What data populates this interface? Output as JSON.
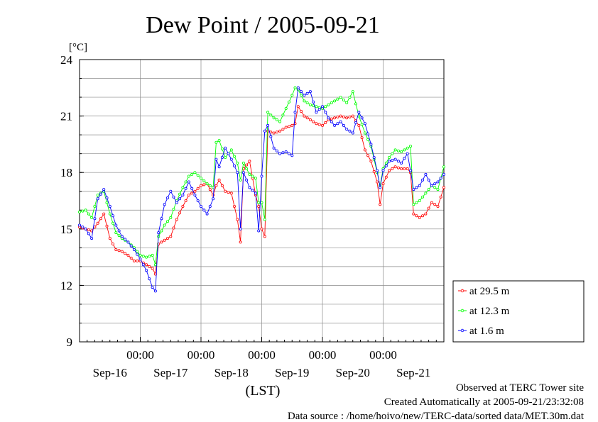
{
  "chart_data": {
    "type": "line",
    "title": "Dew Point / 2005-09-21",
    "ylabel": "[°C]",
    "xlabel": "(LST)",
    "ylim": [
      9,
      24
    ],
    "yticks": [
      9,
      12,
      15,
      18,
      21,
      24
    ],
    "xlim": [
      0,
      6
    ],
    "x_unit": "days since 2005-09-16 00:00 LST",
    "xticks": [
      {
        "x": 1,
        "label": "00:00"
      },
      {
        "x": 2,
        "label": "00:00"
      },
      {
        "x": 3,
        "label": "00:00"
      },
      {
        "x": 4,
        "label": "00:00"
      },
      {
        "x": 5,
        "label": "00:00"
      }
    ],
    "day_labels": [
      {
        "x": 0.5,
        "label": "Sep-16"
      },
      {
        "x": 1.5,
        "label": "Sep-17"
      },
      {
        "x": 2.5,
        "label": "Sep-18"
      },
      {
        "x": 3.5,
        "label": "Sep-19"
      },
      {
        "x": 4.5,
        "label": "Sep-20"
      },
      {
        "x": 5.5,
        "label": "Sep-21"
      }
    ],
    "grid": true,
    "legend_position": "right",
    "series": [
      {
        "name": "at 29.5 m",
        "color": "#ff0000",
        "points": [
          [
            0.0,
            15.1
          ],
          [
            0.1,
            15.0
          ],
          [
            0.2,
            14.9
          ],
          [
            0.3,
            15.3
          ],
          [
            0.4,
            15.8
          ],
          [
            0.5,
            14.5
          ],
          [
            0.6,
            13.9
          ],
          [
            0.7,
            13.8
          ],
          [
            0.8,
            13.6
          ],
          [
            0.9,
            13.3
          ],
          [
            1.0,
            13.3
          ],
          [
            1.1,
            13.1
          ],
          [
            1.2,
            12.9
          ],
          [
            1.25,
            12.6
          ],
          [
            1.3,
            14.2
          ],
          [
            1.4,
            14.4
          ],
          [
            1.5,
            14.6
          ],
          [
            1.6,
            15.5
          ],
          [
            1.7,
            16.2
          ],
          [
            1.8,
            16.8
          ],
          [
            1.9,
            17.0
          ],
          [
            2.0,
            17.3
          ],
          [
            2.1,
            17.4
          ],
          [
            2.2,
            16.8
          ],
          [
            2.25,
            17.3
          ],
          [
            2.3,
            17.6
          ],
          [
            2.4,
            17.0
          ],
          [
            2.5,
            16.9
          ],
          [
            2.6,
            15.5
          ],
          [
            2.65,
            14.3
          ],
          [
            2.7,
            18.2
          ],
          [
            2.8,
            18.6
          ],
          [
            2.9,
            16.8
          ],
          [
            2.95,
            16.2
          ],
          [
            3.0,
            15.0
          ],
          [
            3.05,
            14.6
          ],
          [
            3.1,
            20.2
          ],
          [
            3.2,
            20.1
          ],
          [
            3.3,
            20.2
          ],
          [
            3.4,
            20.4
          ],
          [
            3.5,
            20.5
          ],
          [
            3.55,
            20.6
          ],
          [
            3.6,
            21.5
          ],
          [
            3.7,
            21.0
          ],
          [
            3.8,
            20.8
          ],
          [
            3.9,
            20.6
          ],
          [
            4.0,
            20.5
          ],
          [
            4.1,
            20.8
          ],
          [
            4.2,
            20.9
          ],
          [
            4.3,
            21.0
          ],
          [
            4.4,
            20.9
          ],
          [
            4.5,
            21.0
          ],
          [
            4.6,
            20.5
          ],
          [
            4.7,
            19.2
          ],
          [
            4.8,
            18.6
          ],
          [
            4.9,
            17.5
          ],
          [
            4.95,
            16.3
          ],
          [
            5.0,
            17.4
          ],
          [
            5.1,
            18.1
          ],
          [
            5.2,
            18.3
          ],
          [
            5.3,
            18.2
          ],
          [
            5.4,
            18.2
          ],
          [
            5.45,
            18.0
          ],
          [
            5.5,
            15.8
          ],
          [
            5.6,
            15.6
          ],
          [
            5.7,
            15.8
          ],
          [
            5.8,
            16.4
          ],
          [
            5.9,
            16.2
          ],
          [
            6.0,
            17.2
          ]
        ]
      },
      {
        "name": "at 12.3 m",
        "color": "#00ff00",
        "points": [
          [
            0.0,
            15.9
          ],
          [
            0.1,
            16.0
          ],
          [
            0.2,
            15.6
          ],
          [
            0.3,
            16.8
          ],
          [
            0.4,
            17.0
          ],
          [
            0.5,
            15.8
          ],
          [
            0.6,
            14.8
          ],
          [
            0.7,
            14.5
          ],
          [
            0.8,
            14.3
          ],
          [
            0.9,
            14.0
          ],
          [
            1.0,
            13.6
          ],
          [
            1.1,
            13.5
          ],
          [
            1.2,
            13.6
          ],
          [
            1.25,
            13.1
          ],
          [
            1.3,
            14.6
          ],
          [
            1.4,
            15.2
          ],
          [
            1.5,
            15.6
          ],
          [
            1.6,
            16.5
          ],
          [
            1.7,
            17.2
          ],
          [
            1.8,
            17.8
          ],
          [
            1.9,
            18.0
          ],
          [
            2.0,
            17.7
          ],
          [
            2.1,
            17.4
          ],
          [
            2.2,
            17.2
          ],
          [
            2.25,
            19.6
          ],
          [
            2.3,
            19.7
          ],
          [
            2.4,
            18.8
          ],
          [
            2.5,
            19.2
          ],
          [
            2.6,
            18.5
          ],
          [
            2.65,
            17.6
          ],
          [
            2.7,
            18.5
          ],
          [
            2.8,
            17.9
          ],
          [
            2.9,
            17.7
          ],
          [
            2.95,
            16.4
          ],
          [
            3.0,
            16.4
          ],
          [
            3.05,
            15.5
          ],
          [
            3.1,
            21.2
          ],
          [
            3.2,
            20.9
          ],
          [
            3.3,
            20.7
          ],
          [
            3.4,
            21.4
          ],
          [
            3.5,
            22.1
          ],
          [
            3.55,
            22.5
          ],
          [
            3.6,
            22.4
          ],
          [
            3.7,
            21.8
          ],
          [
            3.8,
            21.6
          ],
          [
            3.9,
            21.5
          ],
          [
            4.0,
            21.4
          ],
          [
            4.1,
            21.6
          ],
          [
            4.2,
            21.8
          ],
          [
            4.3,
            22.0
          ],
          [
            4.4,
            21.7
          ],
          [
            4.5,
            22.3
          ],
          [
            4.6,
            21.0
          ],
          [
            4.7,
            20.1
          ],
          [
            4.8,
            19.4
          ],
          [
            4.9,
            18.0
          ],
          [
            4.95,
            17.3
          ],
          [
            5.0,
            18.2
          ],
          [
            5.1,
            18.8
          ],
          [
            5.2,
            19.2
          ],
          [
            5.3,
            19.1
          ],
          [
            5.4,
            19.3
          ],
          [
            5.45,
            19.4
          ],
          [
            5.5,
            16.3
          ],
          [
            5.6,
            16.5
          ],
          [
            5.7,
            16.9
          ],
          [
            5.8,
            17.3
          ],
          [
            5.9,
            17.1
          ],
          [
            6.0,
            18.3
          ]
        ]
      },
      {
        "name": "at 1.6 m",
        "color": "#0000ff",
        "points": [
          [
            0.0,
            15.2
          ],
          [
            0.1,
            15.0
          ],
          [
            0.2,
            14.5
          ],
          [
            0.3,
            16.6
          ],
          [
            0.4,
            17.1
          ],
          [
            0.5,
            16.2
          ],
          [
            0.6,
            15.2
          ],
          [
            0.7,
            14.6
          ],
          [
            0.8,
            14.3
          ],
          [
            0.9,
            13.9
          ],
          [
            1.0,
            13.4
          ],
          [
            1.1,
            12.8
          ],
          [
            1.2,
            11.9
          ],
          [
            1.25,
            11.7
          ],
          [
            1.3,
            14.8
          ],
          [
            1.4,
            16.3
          ],
          [
            1.5,
            17.0
          ],
          [
            1.6,
            16.4
          ],
          [
            1.7,
            16.8
          ],
          [
            1.8,
            17.5
          ],
          [
            1.9,
            16.8
          ],
          [
            2.0,
            16.2
          ],
          [
            2.1,
            15.8
          ],
          [
            2.2,
            16.6
          ],
          [
            2.25,
            18.7
          ],
          [
            2.3,
            18.3
          ],
          [
            2.4,
            19.3
          ],
          [
            2.5,
            18.7
          ],
          [
            2.6,
            18.0
          ],
          [
            2.65,
            15.0
          ],
          [
            2.7,
            18.0
          ],
          [
            2.8,
            17.2
          ],
          [
            2.9,
            16.9
          ],
          [
            2.95,
            14.9
          ],
          [
            3.0,
            17.8
          ],
          [
            3.05,
            20.2
          ],
          [
            3.1,
            20.5
          ],
          [
            3.2,
            19.3
          ],
          [
            3.3,
            19.0
          ],
          [
            3.4,
            19.1
          ],
          [
            3.5,
            18.9
          ],
          [
            3.55,
            21.2
          ],
          [
            3.6,
            22.5
          ],
          [
            3.7,
            22.1
          ],
          [
            3.8,
            22.3
          ],
          [
            3.9,
            21.2
          ],
          [
            4.0,
            21.5
          ],
          [
            4.1,
            20.9
          ],
          [
            4.2,
            20.5
          ],
          [
            4.3,
            20.7
          ],
          [
            4.4,
            20.3
          ],
          [
            4.5,
            20.1
          ],
          [
            4.6,
            21.2
          ],
          [
            4.7,
            20.6
          ],
          [
            4.8,
            19.5
          ],
          [
            4.9,
            18.1
          ],
          [
            4.95,
            17.2
          ],
          [
            5.0,
            18.1
          ],
          [
            5.1,
            18.6
          ],
          [
            5.2,
            18.7
          ],
          [
            5.3,
            18.5
          ],
          [
            5.4,
            19.0
          ],
          [
            5.45,
            18.1
          ],
          [
            5.5,
            17.1
          ],
          [
            5.6,
            17.3
          ],
          [
            5.7,
            17.9
          ],
          [
            5.8,
            17.3
          ],
          [
            5.9,
            17.5
          ],
          [
            6.0,
            17.9
          ]
        ]
      }
    ]
  },
  "footer": {
    "line1": "Observed at TERC Tower site",
    "line2": "Created Automatically at 2005-09-21/23:32:08",
    "line3": "Data source : /home/hoivo/new/TERC-data/sorted  data/MET.30m.dat"
  }
}
